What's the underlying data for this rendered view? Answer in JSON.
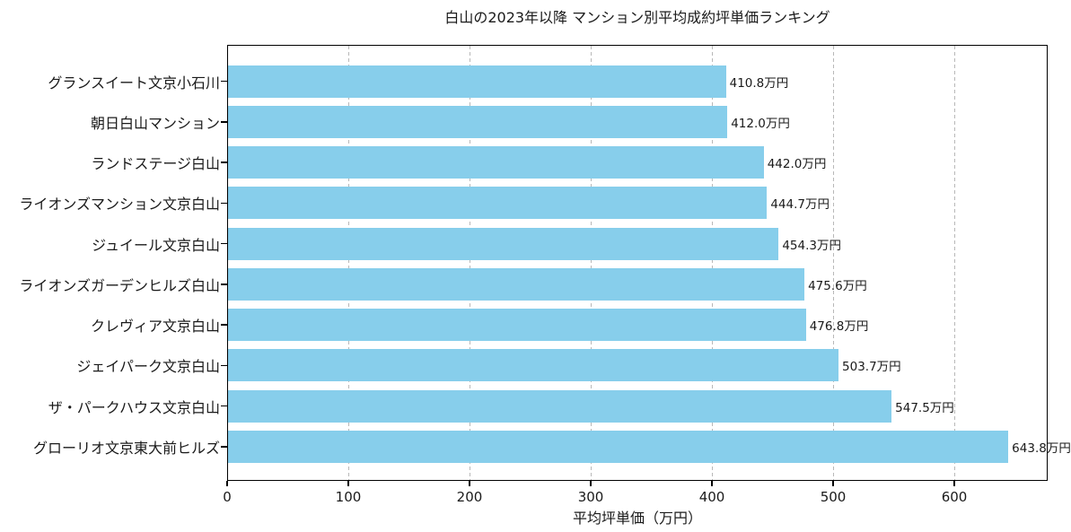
{
  "chart_data": {
    "type": "bar",
    "orientation": "horizontal",
    "title": "白山の2023年以降 マンション別平均成約坪単価ランキング",
    "xlabel": "平均坪単価（万円）",
    "ylabel": "",
    "unit_suffix": "万円",
    "categories": [
      "グランスイート文京小石川",
      "朝日白山マンション",
      "ランドステージ白山",
      "ライオンズマンション文京白山",
      "ジュイール文京白山",
      "ライオンズガーデンヒルズ白山",
      "クレヴィア文京白山",
      "ジェイパーク文京白山",
      "ザ・パークハウス文京白山",
      "グローリオ文京東大前ヒルズ"
    ],
    "values": [
      410.8,
      412.0,
      442.0,
      444.7,
      454.3,
      475.6,
      476.8,
      503.7,
      547.5,
      643.8
    ],
    "value_labels": [
      "410.8万円",
      "412.0万円",
      "442.0万円",
      "444.7万円",
      "454.3万円",
      "475.6万円",
      "476.8万円",
      "503.7万円",
      "547.5万円",
      "643.8万円"
    ],
    "xticks": [
      0,
      100,
      200,
      300,
      400,
      500,
      600
    ],
    "xlim": [
      0,
      677
    ],
    "grid": "vertical-dashed",
    "legend_position": "none",
    "colors": {
      "bar": "#87CEEB",
      "grid": "#b0b0b0",
      "spine": "#000000",
      "text": "#1a1a1a",
      "background": "#ffffff"
    }
  }
}
